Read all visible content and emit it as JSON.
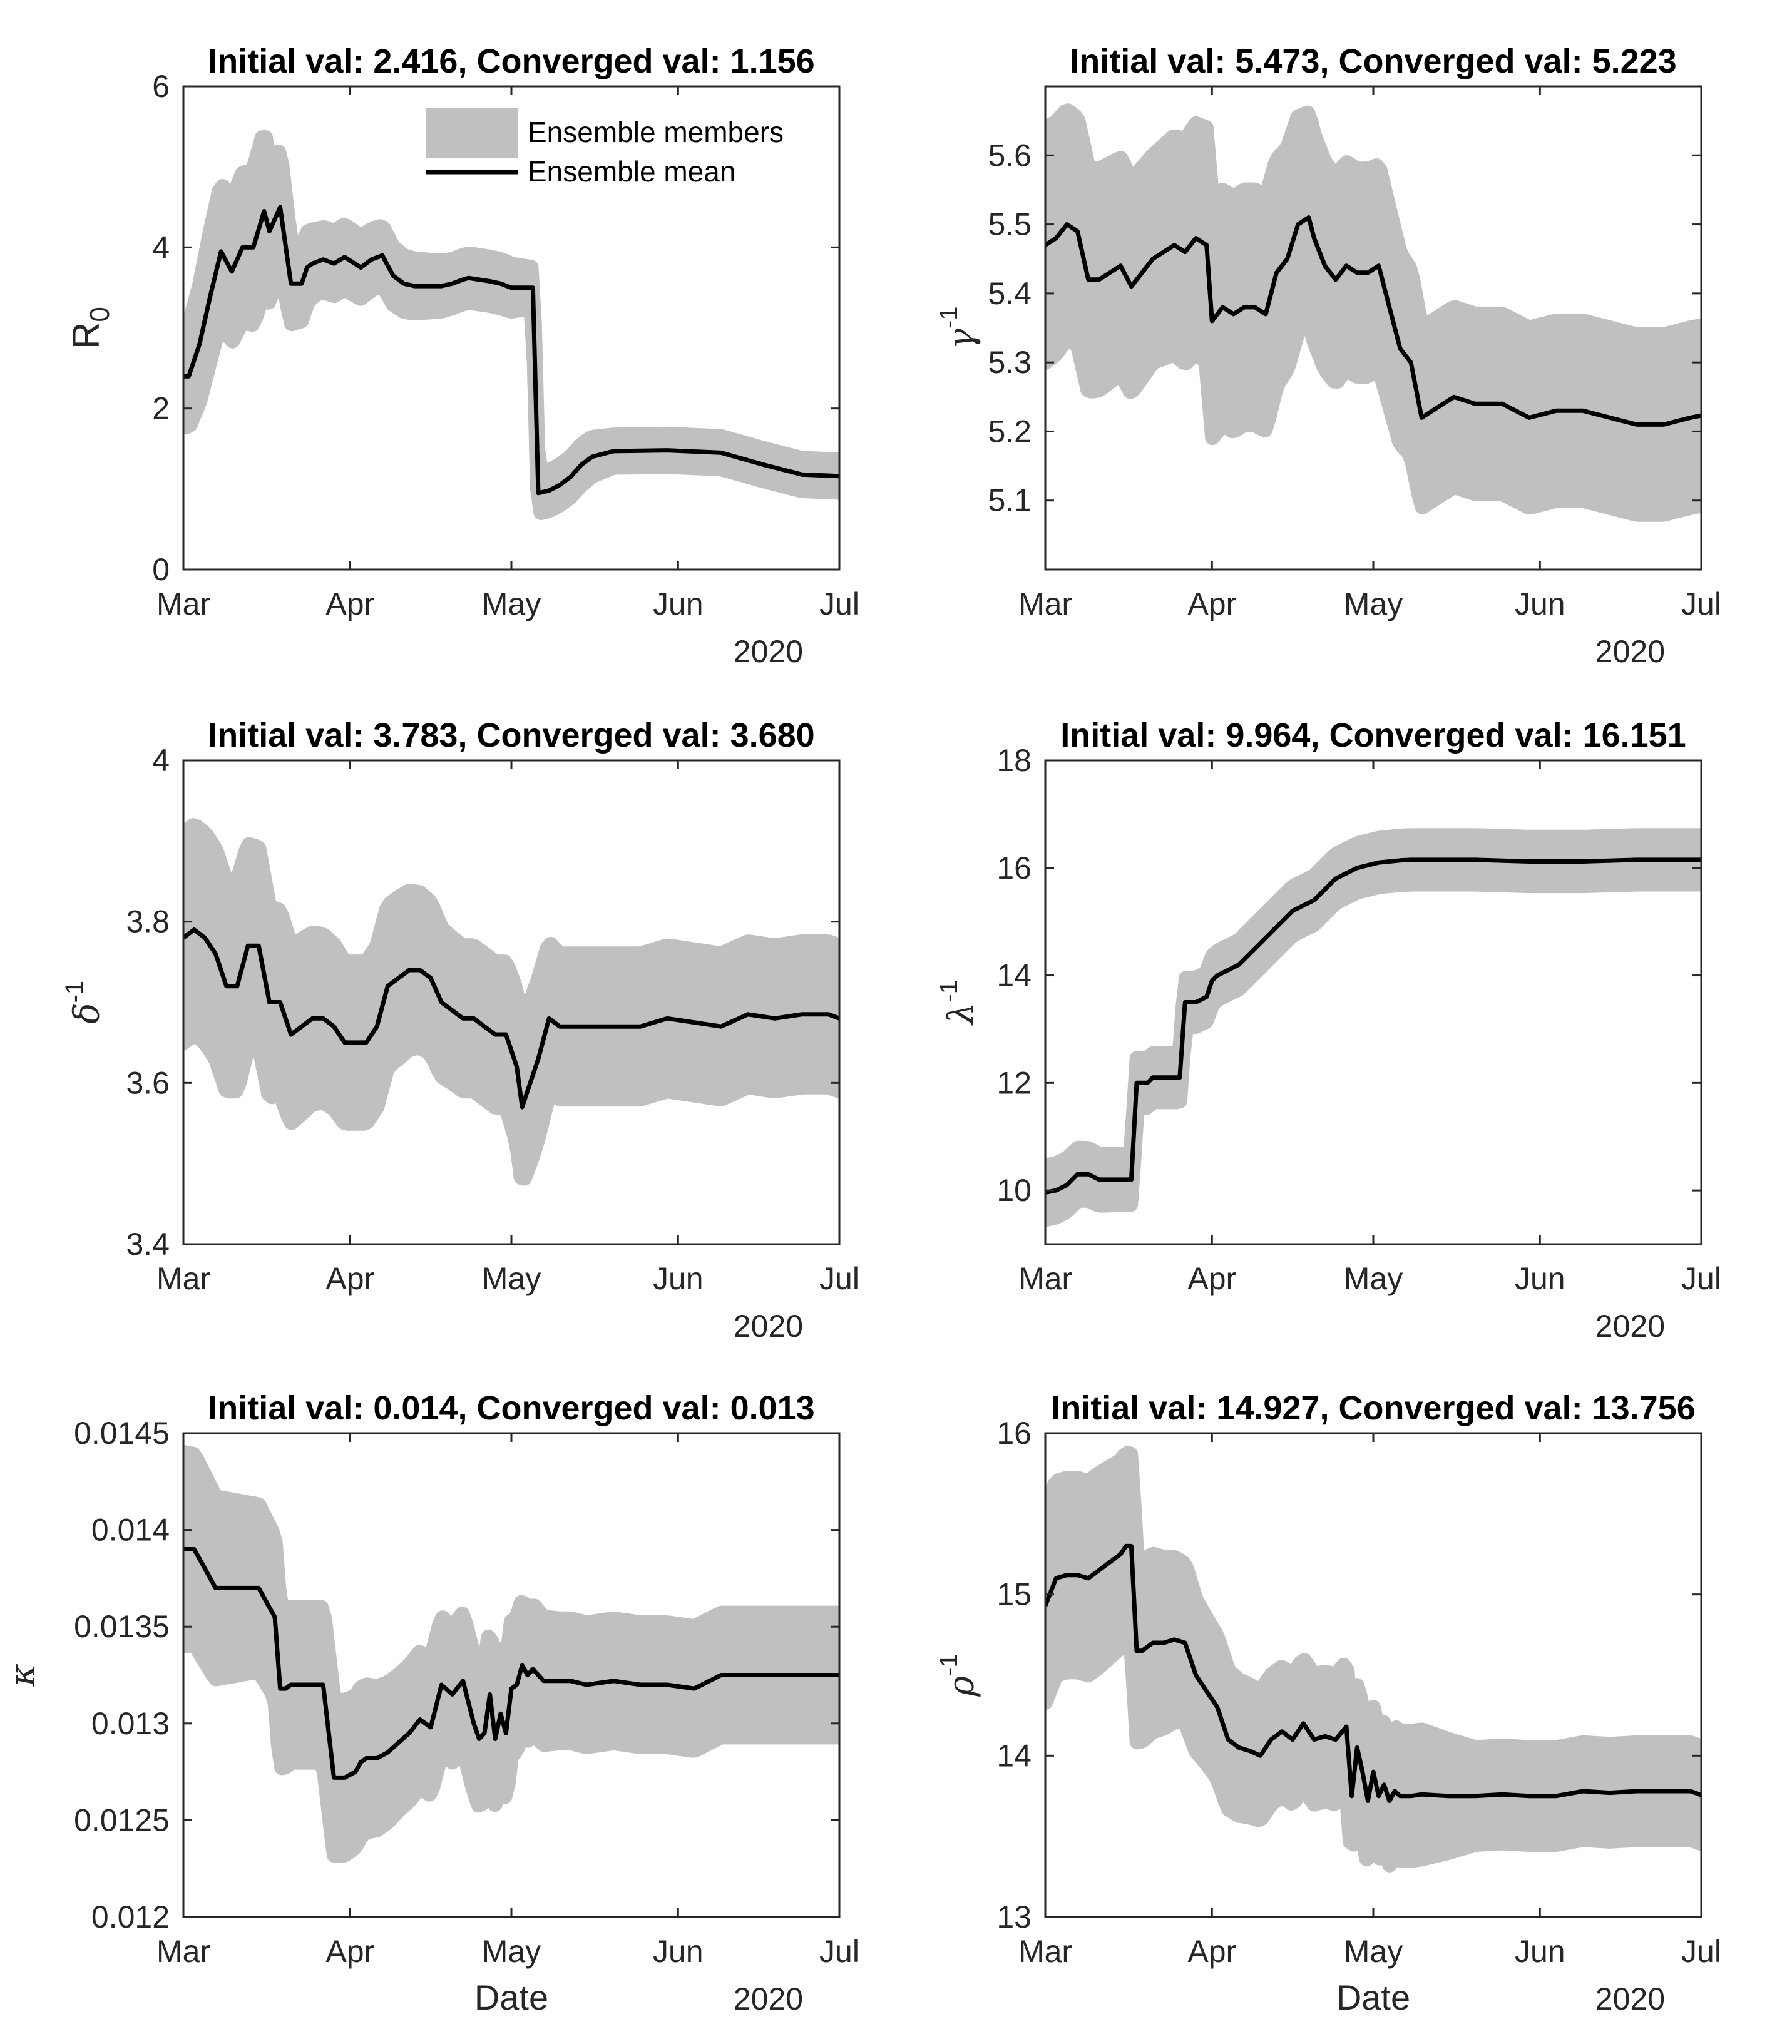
{
  "figure": {
    "xlabel": "Date",
    "year_label": "2020",
    "legend": {
      "members": "Ensemble members",
      "mean": "Ensemble mean"
    },
    "band_color": "#c0c0c0",
    "line_color": "#000000"
  },
  "chart_data": [
    {
      "type": "line",
      "title": "Initial val: 2.416, Converged val: 1.156",
      "ylabel": "R",
      "ylabel_sub": "0",
      "xlabel": "",
      "x_ticks": [
        "Mar",
        "Apr",
        "May",
        "Jun",
        "Jul"
      ],
      "xlim": [
        0,
        122
      ],
      "ylim": [
        0,
        6
      ],
      "y_ticks": [
        "0",
        "2",
        "4",
        "6"
      ],
      "y_tick_values": [
        0,
        2,
        4,
        6
      ],
      "series": [
        {
          "name": "Ensemble mean",
          "x": [
            0,
            1,
            3,
            5,
            7,
            9,
            11,
            13,
            15,
            16,
            18,
            20,
            22,
            23,
            24,
            26,
            28,
            30,
            33,
            35,
            37,
            39,
            41,
            43,
            46,
            48,
            50,
            52,
            53,
            55,
            57,
            59,
            61,
            63,
            65,
            66,
            68,
            70,
            72,
            74,
            76,
            80,
            90,
            100,
            108,
            115,
            122
          ],
          "y": [
            2.4,
            2.4,
            2.8,
            3.4,
            3.95,
            3.7,
            4.0,
            4.0,
            4.45,
            4.2,
            4.5,
            3.55,
            3.55,
            3.75,
            3.8,
            3.85,
            3.8,
            3.88,
            3.75,
            3.85,
            3.9,
            3.65,
            3.55,
            3.52,
            3.52,
            3.52,
            3.55,
            3.6,
            3.62,
            3.6,
            3.58,
            3.55,
            3.5,
            3.5,
            3.5,
            0.95,
            0.98,
            1.05,
            1.15,
            1.3,
            1.4,
            1.47,
            1.48,
            1.45,
            1.3,
            1.18,
            1.16
          ]
        },
        {
          "name": "Ensemble members (band half-width)",
          "x": [
            0,
            5,
            10,
            15,
            20,
            25,
            30,
            40,
            50,
            60,
            65,
            70,
            75,
            80,
            90,
            100,
            110,
            122
          ],
          "y": [
            0.6,
            0.8,
            0.9,
            1.0,
            0.5,
            0.4,
            0.4,
            0.35,
            0.3,
            0.3,
            0.25,
            0.25,
            0.25,
            0.2,
            0.2,
            0.2,
            0.2,
            0.2
          ]
        }
      ]
    },
    {
      "type": "line",
      "title": "Initial val: 5.473, Converged val: 5.223",
      "ylabel": "γ",
      "ylabel_sup": "-1",
      "xlabel": "",
      "x_ticks": [
        "Mar",
        "Apr",
        "May",
        "Jun",
        "Jul"
      ],
      "xlim": [
        0,
        122
      ],
      "ylim": [
        5.0,
        5.7
      ],
      "y_ticks": [
        "5.1",
        "5.2",
        "5.3",
        "5.4",
        "5.5",
        "5.6"
      ],
      "y_tick_values": [
        5.1,
        5.2,
        5.3,
        5.4,
        5.5,
        5.6
      ],
      "series": [
        {
          "name": "Ensemble mean",
          "x": [
            0,
            2,
            4,
            6,
            8,
            10,
            12,
            14,
            16,
            18,
            20,
            22,
            24,
            26,
            28,
            30,
            31,
            33,
            35,
            37,
            39,
            41,
            43,
            45,
            47,
            49,
            50,
            52,
            54,
            56,
            58,
            60,
            62,
            64,
            66,
            68,
            70,
            72,
            74,
            76,
            80,
            85,
            90,
            95,
            100,
            105,
            110,
            115,
            120,
            122
          ],
          "y": [
            5.47,
            5.48,
            5.5,
            5.49,
            5.42,
            5.42,
            5.43,
            5.44,
            5.41,
            5.43,
            5.45,
            5.46,
            5.47,
            5.46,
            5.48,
            5.47,
            5.36,
            5.38,
            5.37,
            5.38,
            5.38,
            5.37,
            5.43,
            5.45,
            5.5,
            5.51,
            5.48,
            5.44,
            5.42,
            5.44,
            5.43,
            5.43,
            5.44,
            5.38,
            5.32,
            5.3,
            5.22,
            5.23,
            5.24,
            5.25,
            5.24,
            5.24,
            5.22,
            5.23,
            5.23,
            5.22,
            5.21,
            5.21,
            5.22,
            5.223
          ]
        },
        {
          "name": "Ensemble members (band half-width)",
          "x": [
            0,
            10,
            20,
            30,
            40,
            50,
            60,
            65,
            70,
            80,
            90,
            100,
            110,
            122
          ],
          "y": [
            0.17,
            0.16,
            0.15,
            0.17,
            0.17,
            0.15,
            0.15,
            0.14,
            0.13,
            0.13,
            0.13,
            0.13,
            0.13,
            0.13
          ]
        }
      ]
    },
    {
      "type": "line",
      "title": "Initial val: 3.783, Converged val: 3.680",
      "ylabel": "δ",
      "ylabel_sup": "-1",
      "xlabel": "",
      "x_ticks": [
        "Mar",
        "Apr",
        "May",
        "Jun",
        "Jul"
      ],
      "xlim": [
        0,
        122
      ],
      "ylim": [
        3.4,
        4.0
      ],
      "y_ticks": [
        "3.4",
        "3.6",
        "3.8",
        "4"
      ],
      "y_tick_values": [
        3.4,
        3.6,
        3.8,
        4.0
      ],
      "series": [
        {
          "name": "Ensemble mean",
          "x": [
            0,
            2,
            4,
            6,
            8,
            10,
            12,
            14,
            16,
            18,
            20,
            22,
            24,
            26,
            28,
            30,
            32,
            34,
            36,
            38,
            40,
            42,
            44,
            46,
            48,
            50,
            52,
            54,
            56,
            58,
            60,
            62,
            63,
            64,
            66,
            68,
            70,
            72,
            75,
            80,
            85,
            90,
            95,
            100,
            105,
            110,
            115,
            120,
            122
          ],
          "y": [
            3.78,
            3.79,
            3.78,
            3.76,
            3.72,
            3.72,
            3.77,
            3.77,
            3.7,
            3.7,
            3.66,
            3.67,
            3.68,
            3.68,
            3.67,
            3.65,
            3.65,
            3.65,
            3.67,
            3.72,
            3.73,
            3.74,
            3.74,
            3.73,
            3.7,
            3.69,
            3.68,
            3.68,
            3.67,
            3.66,
            3.66,
            3.62,
            3.57,
            3.59,
            3.63,
            3.68,
            3.67,
            3.67,
            3.67,
            3.67,
            3.67,
            3.68,
            3.675,
            3.67,
            3.685,
            3.68,
            3.685,
            3.685,
            3.68
          ]
        },
        {
          "name": "Ensemble members (band half-width)",
          "x": [
            0,
            10,
            20,
            30,
            40,
            50,
            55,
            60,
            65,
            70,
            80,
            90,
            100,
            110,
            122
          ],
          "y": [
            0.13,
            0.13,
            0.11,
            0.1,
            0.1,
            0.09,
            0.09,
            0.09,
            0.1,
            0.09,
            0.09,
            0.09,
            0.09,
            0.09,
            0.09
          ]
        }
      ]
    },
    {
      "type": "line",
      "title": "Initial val: 9.964, Converged val: 16.151",
      "ylabel": "λ",
      "ylabel_sup": "-1",
      "xlabel": "",
      "x_ticks": [
        "Mar",
        "Apr",
        "May",
        "Jun",
        "Jul"
      ],
      "xlim": [
        0,
        122
      ],
      "ylim": [
        9,
        18
      ],
      "y_ticks": [
        "10",
        "12",
        "14",
        "16",
        "18"
      ],
      "y_tick_values": [
        10,
        12,
        14,
        16,
        18
      ],
      "series": [
        {
          "name": "Ensemble mean",
          "x": [
            0,
            2,
            4,
            6,
            8,
            10,
            12,
            14,
            16,
            17,
            18,
            19,
            20,
            24,
            25,
            26,
            27,
            28,
            30,
            31,
            32,
            34,
            36,
            38,
            40,
            42,
            44,
            46,
            48,
            50,
            52,
            54,
            56,
            58,
            60,
            62,
            64,
            66,
            68,
            70,
            75,
            80,
            90,
            100,
            110,
            122
          ],
          "y": [
            9.96,
            10.0,
            10.1,
            10.3,
            10.3,
            10.2,
            10.2,
            10.2,
            10.2,
            12.0,
            12.0,
            12.0,
            12.1,
            12.1,
            12.1,
            13.5,
            13.5,
            13.5,
            13.6,
            13.9,
            14.0,
            14.1,
            14.2,
            14.4,
            14.6,
            14.8,
            15.0,
            15.2,
            15.3,
            15.4,
            15.6,
            15.8,
            15.9,
            16.0,
            16.05,
            16.1,
            16.12,
            16.14,
            16.15,
            16.15,
            16.15,
            16.15,
            16.12,
            16.12,
            16.15,
            16.15
          ]
        },
        {
          "name": "Ensemble members (band half-width)",
          "x": [
            0,
            20,
            40,
            60,
            80,
            100,
            122
          ],
          "y": [
            0.5,
            0.45,
            0.45,
            0.45,
            0.45,
            0.45,
            0.45
          ]
        }
      ]
    },
    {
      "type": "line",
      "title": "Initial val: 0.014, Converged val: 0.013",
      "ylabel": "κ",
      "xlabel": "Date",
      "x_ticks": [
        "Mar",
        "Apr",
        "May",
        "Jun",
        "Jul"
      ],
      "xlim": [
        0,
        122
      ],
      "ylim": [
        0.012,
        0.0145
      ],
      "y_ticks": [
        "0.012",
        "0.0125",
        "0.013",
        "0.0135",
        "0.014",
        "0.0145"
      ],
      "y_tick_values": [
        0.012,
        0.0125,
        0.013,
        0.0135,
        0.014,
        0.0145
      ],
      "series": [
        {
          "name": "Ensemble mean",
          "x": [
            0,
            2,
            4,
            6,
            8,
            10,
            12,
            14,
            16,
            17,
            18,
            19,
            20,
            22,
            24,
            26,
            28,
            30,
            32,
            33,
            34,
            36,
            38,
            40,
            42,
            44,
            46,
            48,
            50,
            52,
            54,
            55,
            56,
            57,
            58,
            59,
            60,
            61,
            62,
            63,
            64,
            65,
            66,
            67,
            68,
            70,
            72,
            75,
            80,
            85,
            90,
            95,
            100,
            105,
            110,
            115,
            120,
            122
          ],
          "y": [
            0.0139,
            0.0139,
            0.0138,
            0.0137,
            0.0137,
            0.0137,
            0.0137,
            0.0137,
            0.0136,
            0.01355,
            0.01318,
            0.01318,
            0.0132,
            0.0132,
            0.0132,
            0.0132,
            0.01272,
            0.01272,
            0.01275,
            0.0128,
            0.01282,
            0.01282,
            0.01285,
            0.0129,
            0.01295,
            0.01302,
            0.01298,
            0.0132,
            0.01315,
            0.01322,
            0.013,
            0.01292,
            0.01295,
            0.01315,
            0.01292,
            0.01305,
            0.01295,
            0.01318,
            0.0132,
            0.0133,
            0.01325,
            0.01328,
            0.01325,
            0.01322,
            0.01322,
            0.01322,
            0.01322,
            0.0132,
            0.01322,
            0.0132,
            0.0132,
            0.01318,
            0.01325,
            0.01325,
            0.01325,
            0.01325,
            0.01325,
            0.01325
          ]
        },
        {
          "name": "Ensemble members (band half-width)",
          "x": [
            0,
            10,
            20,
            30,
            40,
            50,
            60,
            70,
            80,
            90,
            100,
            110,
            122
          ],
          "y": [
            0.0005,
            0.00045,
            0.0004,
            0.0004,
            0.00035,
            0.00035,
            0.00035,
            0.00032,
            0.00032,
            0.00032,
            0.00032,
            0.00032,
            0.00032
          ]
        }
      ]
    },
    {
      "type": "line",
      "title": "Initial val: 14.927, Converged val: 13.756",
      "ylabel": "ρ",
      "ylabel_sup": "-1",
      "xlabel": "Date",
      "x_ticks": [
        "Mar",
        "Apr",
        "May",
        "Jun",
        "Jul"
      ],
      "xlim": [
        0,
        122
      ],
      "ylim": [
        13,
        16
      ],
      "y_ticks": [
        "13",
        "14",
        "15",
        "16"
      ],
      "y_tick_values": [
        13,
        14,
        15,
        16
      ],
      "series": [
        {
          "name": "Ensemble mean",
          "x": [
            0,
            2,
            4,
            6,
            8,
            10,
            12,
            14,
            15,
            16,
            17,
            18,
            20,
            22,
            24,
            26,
            28,
            30,
            32,
            34,
            36,
            38,
            40,
            42,
            44,
            46,
            48,
            50,
            52,
            54,
            56,
            57,
            58,
            59,
            60,
            61,
            62,
            63,
            64,
            65,
            66,
            68,
            70,
            75,
            80,
            85,
            90,
            95,
            100,
            105,
            110,
            115,
            120,
            122
          ],
          "y": [
            14.93,
            15.1,
            15.12,
            15.12,
            15.1,
            15.15,
            15.2,
            15.25,
            15.3,
            15.3,
            14.65,
            14.65,
            14.7,
            14.7,
            14.72,
            14.7,
            14.5,
            14.4,
            14.3,
            14.1,
            14.05,
            14.03,
            14.0,
            14.1,
            14.15,
            14.1,
            14.2,
            14.1,
            14.12,
            14.1,
            14.18,
            13.75,
            14.05,
            13.9,
            13.72,
            13.9,
            13.75,
            13.82,
            13.72,
            13.78,
            13.75,
            13.75,
            13.76,
            13.75,
            13.75,
            13.76,
            13.75,
            13.75,
            13.78,
            13.77,
            13.78,
            13.78,
            13.78,
            13.756
          ]
        },
        {
          "name": "Ensemble members (band half-width)",
          "x": [
            0,
            10,
            20,
            30,
            40,
            50,
            60,
            70,
            80,
            90,
            100,
            110,
            122
          ],
          "y": [
            0.6,
            0.6,
            0.55,
            0.45,
            0.4,
            0.4,
            0.4,
            0.4,
            0.3,
            0.3,
            0.3,
            0.3,
            0.3
          ]
        }
      ]
    }
  ]
}
